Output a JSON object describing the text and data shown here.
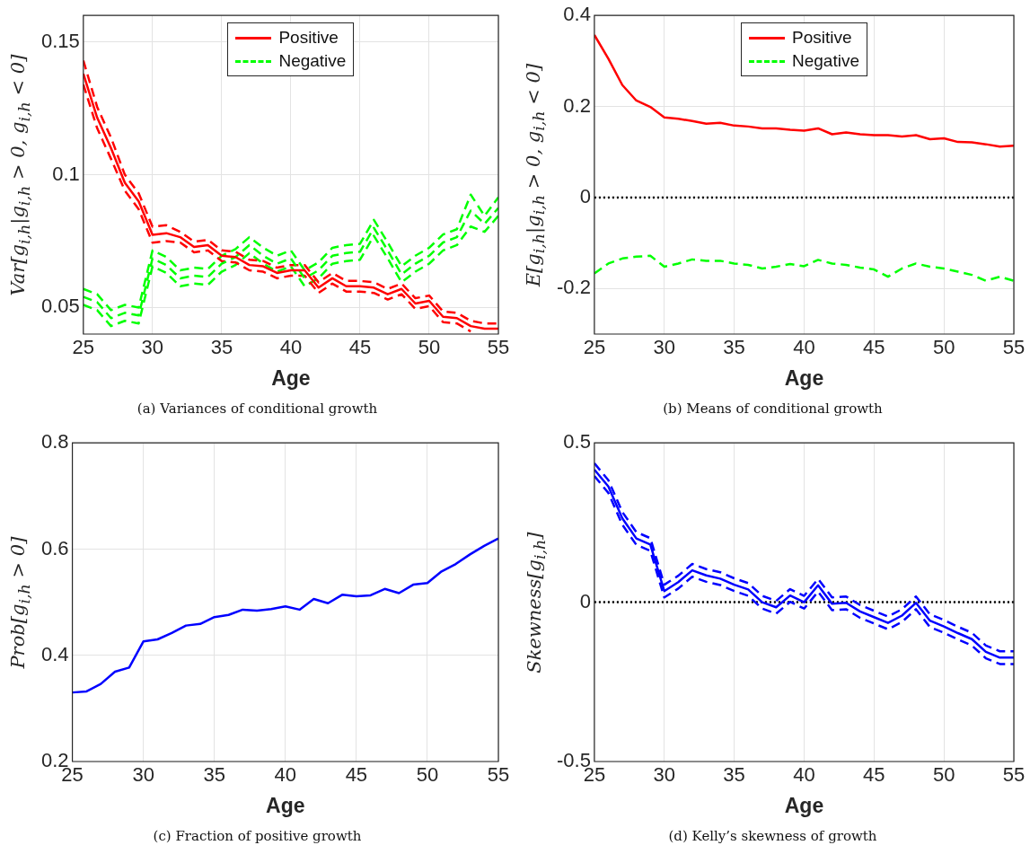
{
  "chart_data": [
    {
      "type": "line",
      "ylabel": "Var[g$_{i,h}$|g$_{i,h}$ > 0, g$_{i,h}$ < 0]",
      "xlabel": "Age",
      "annotations": [
        "(a) Variances of conditional growth"
      ],
      "x": [
        25,
        26,
        27,
        28,
        29,
        30,
        31,
        32,
        33,
        34,
        35,
        36,
        37,
        38,
        39,
        40,
        41,
        42,
        43,
        44,
        45,
        46,
        47,
        48,
        49,
        50,
        51,
        52,
        53,
        54,
        55
      ],
      "xlim": [
        25,
        55
      ],
      "xticks": [
        25,
        30,
        35,
        40,
        45,
        50,
        55
      ],
      "ylim": [
        0.04,
        0.16
      ],
      "yticks": [
        0.05,
        0.1,
        0.15
      ],
      "grid": true,
      "legend": "top",
      "marker": "none",
      "series": [
        {
          "name": "Positive",
          "color": "#ff0000",
          "line_style": "solid",
          "values": [
            0.138,
            0.1215,
            0.11,
            0.097,
            0.09,
            0.0774,
            0.078,
            0.0765,
            0.0728,
            0.0735,
            0.0695,
            0.069,
            0.066,
            0.0655,
            0.063,
            0.064,
            0.064,
            0.0575,
            0.061,
            0.058,
            0.058,
            0.0575,
            0.055,
            0.057,
            0.0515,
            0.0525,
            0.0465,
            0.046,
            0.043,
            0.042,
            0.042
          ]
        },
        {
          "name": "Negative",
          "color": "#00ff00",
          "line_style": "dashed",
          "values": [
            0.054,
            0.052,
            0.046,
            0.048,
            0.047,
            0.0685,
            0.066,
            0.061,
            0.062,
            0.0615,
            0.0665,
            0.069,
            0.0735,
            0.0695,
            0.0665,
            0.0685,
            0.061,
            0.064,
            0.0695,
            0.0705,
            0.071,
            0.08,
            0.0715,
            0.0625,
            0.0665,
            0.0695,
            0.0745,
            0.0765,
            0.0865,
            0.0815,
            0.0875
          ]
        },
        {
          "color": "#ff0000",
          "line_style": "dashed",
          "values": [
            0.143,
            0.1255,
            0.114,
            0.1,
            0.093,
            0.0804,
            0.081,
            0.0785,
            0.0748,
            0.0755,
            0.0715,
            0.071,
            0.068,
            0.0675,
            0.065,
            0.066,
            0.066,
            0.0595,
            0.063,
            0.06,
            0.06,
            0.0595,
            0.057,
            0.059,
            0.0535,
            0.0545,
            0.0485,
            0.048,
            0.045,
            0.044,
            0.044
          ]
        },
        {
          "color": "#ff0000",
          "line_style": "dashed",
          "values": [
            0.134,
            0.1175,
            0.106,
            0.094,
            0.087,
            0.0744,
            0.075,
            0.0745,
            0.0708,
            0.0715,
            0.0675,
            0.067,
            0.064,
            0.0635,
            0.061,
            0.062,
            0.062,
            0.0555,
            0.059,
            0.056,
            0.056,
            0.0555,
            0.053,
            0.055,
            0.0495,
            0.0505,
            0.0445,
            0.044,
            0.041,
            null,
            null
          ]
        },
        {
          "color": "#00ff00",
          "line_style": "dashed",
          "values": [
            0.057,
            0.055,
            0.049,
            0.051,
            0.05,
            0.0715,
            0.069,
            0.064,
            0.065,
            0.0645,
            0.0695,
            0.072,
            0.0765,
            0.0725,
            0.0695,
            0.0715,
            0.064,
            0.067,
            0.0725,
            0.0735,
            0.074,
            0.083,
            0.0745,
            0.0655,
            0.0695,
            0.0725,
            0.0775,
            0.0795,
            0.0925,
            0.0845,
            0.0915
          ]
        },
        {
          "color": "#00ff00",
          "line_style": "dashed",
          "values": [
            0.051,
            0.049,
            0.043,
            0.045,
            0.044,
            0.0655,
            0.063,
            0.058,
            0.059,
            0.0585,
            0.0635,
            0.066,
            0.0705,
            0.0665,
            0.0635,
            0.0655,
            0.058,
            0.061,
            0.0665,
            0.0675,
            0.068,
            0.077,
            0.0685,
            0.0595,
            0.0635,
            0.0665,
            0.0715,
            0.0735,
            0.0805,
            0.0785,
            0.0845
          ]
        }
      ]
    },
    {
      "type": "line",
      "ylabel": "E[g$_{i,h}$|g$_{i,h}$ > 0, g$_{i,h}$ < 0]",
      "xlabel": "Age",
      "annotations": [
        "(b) Means of conditional growth"
      ],
      "x": [
        25,
        26,
        27,
        28,
        29,
        30,
        31,
        32,
        33,
        34,
        35,
        36,
        37,
        38,
        39,
        40,
        41,
        42,
        43,
        44,
        45,
        46,
        47,
        48,
        49,
        50,
        51,
        52,
        53,
        54,
        55
      ],
      "xlim": [
        25,
        55
      ],
      "xticks": [
        25,
        30,
        35,
        40,
        45,
        50,
        55
      ],
      "ylim": [
        -0.3,
        0.4
      ],
      "yticks": [
        -0.2,
        0,
        0.2,
        0.4
      ],
      "grid": true,
      "legend": "top",
      "marker": "none",
      "ref_lines": [
        {
          "axis": "y",
          "value": 0,
          "color": "#000000",
          "line_style": "dotted"
        }
      ],
      "series": [
        {
          "name": "Positive",
          "color": "#ff0000",
          "line_style": "solid",
          "values": [
            0.357,
            0.305,
            0.247,
            0.213,
            0.199,
            0.176,
            0.173,
            0.168,
            0.162,
            0.164,
            0.158,
            0.156,
            0.152,
            0.152,
            0.149,
            0.147,
            0.152,
            0.139,
            0.143,
            0.139,
            0.137,
            0.137,
            0.134,
            0.137,
            0.128,
            0.13,
            0.122,
            0.121,
            0.117,
            0.112,
            0.114
          ]
        },
        {
          "name": "Negative",
          "color": "#00ff00",
          "line_style": "dashed",
          "values": [
            -0.167,
            -0.145,
            -0.134,
            -0.13,
            -0.128,
            -0.152,
            -0.145,
            -0.136,
            -0.139,
            -0.139,
            -0.145,
            -0.148,
            -0.156,
            -0.152,
            -0.146,
            -0.151,
            -0.137,
            -0.145,
            -0.148,
            -0.154,
            -0.158,
            -0.174,
            -0.156,
            -0.145,
            -0.152,
            -0.156,
            -0.163,
            -0.17,
            -0.183,
            -0.174,
            -0.183
          ]
        }
      ]
    },
    {
      "type": "line",
      "ylabel": "Prob[g$_{i,h}$ > 0]",
      "xlabel": "Age",
      "annotations": [
        "(c) Fraction of positive growth"
      ],
      "x": [
        25,
        26,
        27,
        28,
        29,
        30,
        31,
        32,
        33,
        34,
        35,
        36,
        37,
        38,
        39,
        40,
        41,
        42,
        43,
        44,
        45,
        46,
        47,
        48,
        49,
        50,
        51,
        52,
        53,
        54,
        55
      ],
      "xlim": [
        25,
        55
      ],
      "xticks": [
        25,
        30,
        35,
        40,
        45,
        50,
        55
      ],
      "ylim": [
        0.2,
        0.8
      ],
      "yticks": [
        0.2,
        0.4,
        0.6,
        0.8
      ],
      "grid": true,
      "marker": "none",
      "series": [
        {
          "color": "#0000ff",
          "line_style": "solid",
          "values": [
            0.33,
            0.332,
            0.346,
            0.369,
            0.377,
            0.426,
            0.43,
            0.442,
            0.456,
            0.459,
            0.472,
            0.476,
            0.486,
            0.484,
            0.487,
            0.492,
            0.486,
            0.506,
            0.498,
            0.514,
            0.511,
            0.513,
            0.525,
            0.517,
            0.533,
            0.536,
            0.558,
            0.572,
            0.59,
            0.606,
            0.62
          ]
        }
      ]
    },
    {
      "type": "line",
      "ylabel": "Skewness[g$_{i,h}$]",
      "xlabel": "Age",
      "annotations": [
        "(d) Kelly’s skewness of growth"
      ],
      "x": [
        25,
        26,
        27,
        28,
        29,
        30,
        31,
        32,
        33,
        34,
        35,
        36,
        37,
        38,
        39,
        40,
        41,
        42,
        43,
        44,
        45,
        46,
        47,
        48,
        49,
        50,
        51,
        52,
        53,
        54,
        55
      ],
      "xlim": [
        25,
        55
      ],
      "xticks": [
        25,
        30,
        35,
        40,
        45,
        50,
        55
      ],
      "ylim": [
        -0.5,
        0.5
      ],
      "yticks": [
        -0.5,
        0,
        0.5
      ],
      "grid": true,
      "marker": "none",
      "ref_lines": [
        {
          "axis": "y",
          "value": 0,
          "color": "#000000",
          "line_style": "dotted"
        }
      ],
      "series": [
        {
          "color": "#0000ff",
          "line_style": "solid",
          "values": [
            0.416,
            0.363,
            0.263,
            0.2,
            0.181,
            0.035,
            0.063,
            0.1,
            0.084,
            0.074,
            0.055,
            0.04,
            0.0,
            -0.016,
            0.021,
            0.0,
            0.053,
            -0.005,
            -0.002,
            -0.029,
            -0.047,
            -0.065,
            -0.042,
            -0.002,
            -0.058,
            -0.076,
            -0.097,
            -0.116,
            -0.156,
            -0.174,
            -0.174
          ]
        },
        {
          "color": "#0000ff",
          "line_style": "dashed",
          "values": [
            0.436,
            0.383,
            0.283,
            0.22,
            0.201,
            0.055,
            0.083,
            0.12,
            0.104,
            0.094,
            0.075,
            0.06,
            0.02,
            0.004,
            0.041,
            0.02,
            0.073,
            0.015,
            0.018,
            -0.009,
            -0.027,
            -0.045,
            -0.022,
            0.018,
            -0.038,
            -0.056,
            -0.077,
            -0.096,
            -0.136,
            -0.154,
            -0.154
          ]
        },
        {
          "color": "#0000ff",
          "line_style": "dashed",
          "values": [
            0.396,
            0.343,
            0.243,
            0.18,
            0.161,
            0.015,
            0.043,
            0.08,
            0.064,
            0.054,
            0.035,
            0.02,
            -0.02,
            -0.036,
            0.001,
            -0.02,
            0.033,
            -0.025,
            -0.022,
            -0.049,
            -0.067,
            -0.085,
            -0.062,
            -0.022,
            -0.078,
            -0.096,
            -0.117,
            -0.136,
            -0.176,
            -0.194,
            -0.194
          ]
        }
      ]
    }
  ]
}
